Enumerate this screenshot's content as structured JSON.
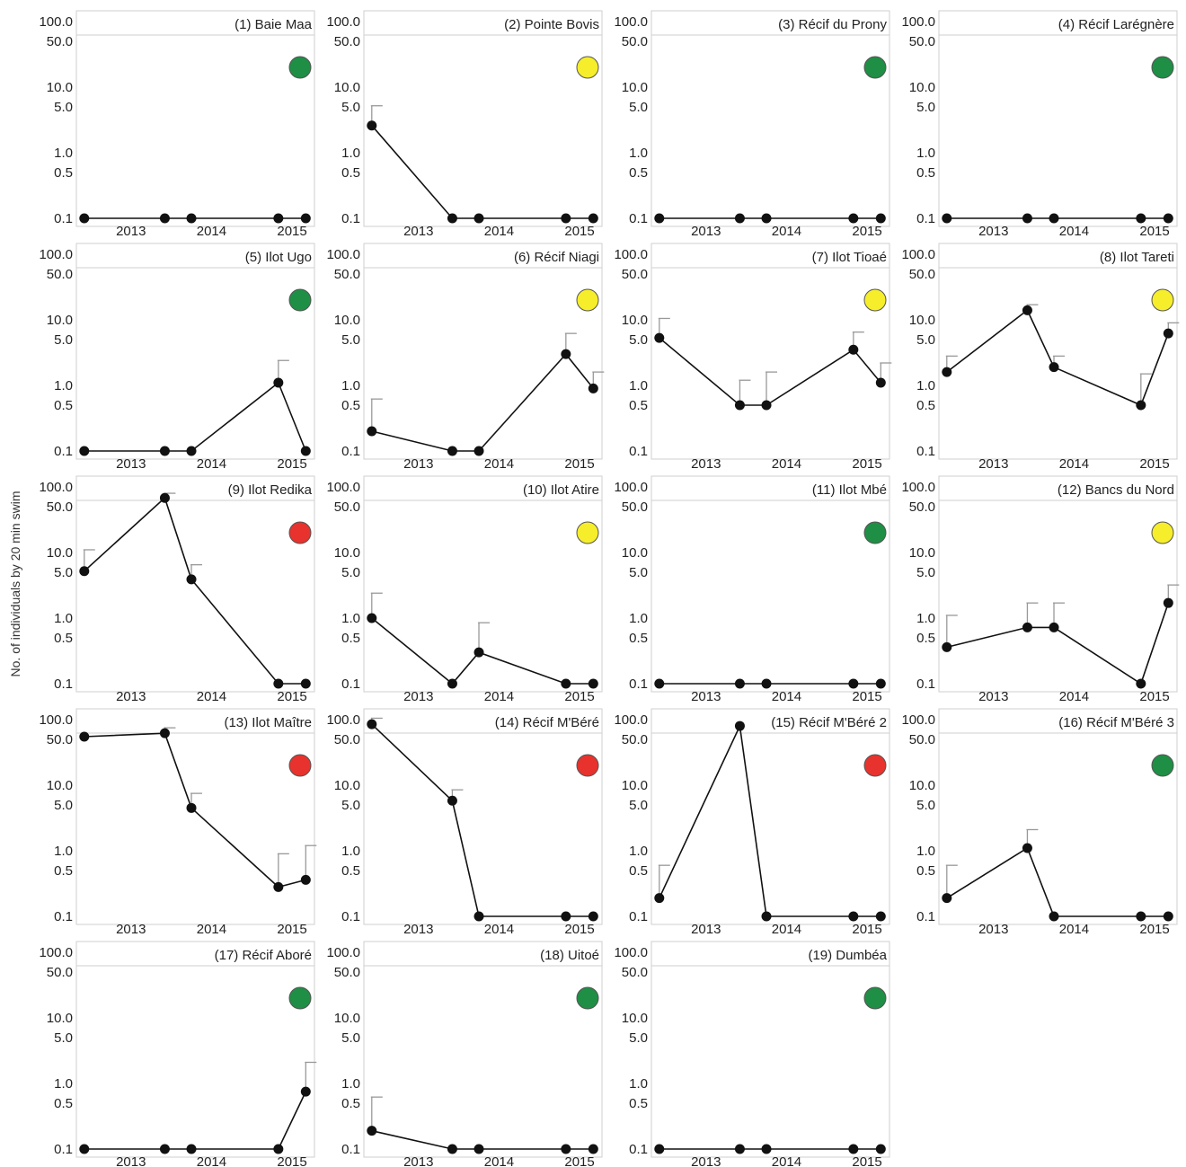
{
  "figure": {
    "ylabel": "No. of individuals by 20 min swim"
  },
  "status_colors": {
    "green": "#1e8f45",
    "yellow": "#f6ee2a",
    "red": "#e8322d"
  },
  "chart_data": {
    "type": "line",
    "yscale": "log",
    "ylim": [
      0.1,
      100
    ],
    "yticks": [
      "100.0",
      "50.0",
      "10.0",
      "5.0",
      "1.0",
      "0.5",
      "0.1"
    ],
    "ytick_values": [
      100,
      50,
      10,
      5,
      1,
      0.5,
      0.1
    ],
    "xticks": [
      "2013",
      "2014",
      "2015"
    ],
    "xtick_values": [
      2013,
      2014,
      2015
    ],
    "xlim": [
      2012.4,
      2015.2
    ],
    "x": [
      2012.42,
      2013.42,
      2013.75,
      2014.83,
      2015.17
    ],
    "panels": [
      {
        "title": "(1) Baie Maa",
        "status": "green",
        "values": [
          0.1,
          0.1,
          0.1,
          0.1,
          0.1
        ],
        "errors": [
          null,
          null,
          null,
          null,
          null
        ]
      },
      {
        "title": "(2) Pointe Bovis",
        "status": "yellow",
        "values": [
          2.6,
          0.1,
          0.1,
          0.1,
          0.1
        ],
        "errors": [
          5.2,
          null,
          null,
          null,
          null
        ]
      },
      {
        "title": "(3) Récif du Prony",
        "status": "green",
        "values": [
          0.1,
          0.1,
          0.1,
          0.1,
          0.1
        ],
        "errors": [
          null,
          null,
          null,
          null,
          null
        ]
      },
      {
        "title": "(4) Récif Larégnère",
        "status": "green",
        "values": [
          0.1,
          0.1,
          0.1,
          0.1,
          0.1
        ],
        "errors": [
          null,
          null,
          null,
          null,
          null
        ]
      },
      {
        "title": "(5) Ilot Ugo",
        "status": "green",
        "values": [
          0.1,
          0.1,
          0.1,
          1.1,
          0.1
        ],
        "errors": [
          null,
          null,
          null,
          2.4,
          null
        ]
      },
      {
        "title": "(6) Récif Niagi",
        "status": "yellow",
        "values": [
          0.2,
          0.1,
          0.1,
          3.0,
          0.9
        ],
        "errors": [
          0.62,
          null,
          null,
          6.2,
          1.6
        ]
      },
      {
        "title": "(7) Ilot Tioaé",
        "status": "yellow",
        "values": [
          5.3,
          0.5,
          0.5,
          3.5,
          1.1
        ],
        "errors": [
          10.5,
          1.2,
          1.6,
          6.5,
          2.2
        ]
      },
      {
        "title": "(8) Ilot Tareti",
        "status": "yellow",
        "values": [
          1.6,
          14.0,
          1.9,
          0.5,
          6.2
        ],
        "errors": [
          2.8,
          17.0,
          2.8,
          1.5,
          9.0
        ]
      },
      {
        "title": "(9) Ilot Redika",
        "status": "red",
        "values": [
          5.2,
          68,
          3.9,
          0.1,
          0.1
        ],
        "errors": [
          11.0,
          80,
          6.5,
          null,
          null
        ]
      },
      {
        "title": "(10) Ilot Atire",
        "status": "yellow",
        "values": [
          1.0,
          0.1,
          0.3,
          0.1,
          0.1
        ],
        "errors": [
          2.4,
          null,
          0.85,
          null,
          null
        ]
      },
      {
        "title": "(11) Ilot Mbé",
        "status": "green",
        "values": [
          0.1,
          0.1,
          0.1,
          0.1,
          0.1
        ],
        "errors": [
          null,
          null,
          null,
          null,
          null
        ]
      },
      {
        "title": "(12) Bancs du Nord",
        "status": "yellow",
        "values": [
          0.36,
          0.72,
          0.72,
          0.1,
          1.7
        ],
        "errors": [
          1.1,
          1.7,
          1.7,
          null,
          3.2
        ]
      },
      {
        "title": "(13) Ilot Maître",
        "status": "red",
        "values": [
          55,
          62,
          4.5,
          0.28,
          0.36
        ],
        "errors": [
          null,
          75,
          7.5,
          0.9,
          1.2
        ]
      },
      {
        "title": "(14) Récif M'Béré",
        "status": "red",
        "values": [
          85,
          5.8,
          0.1,
          0.1,
          0.1
        ],
        "errors": [
          105,
          8.5,
          null,
          null,
          null
        ]
      },
      {
        "title": "(15) Récif M'Béré 2",
        "status": "red",
        "values": [
          0.19,
          80,
          0.1,
          0.1,
          0.1
        ],
        "errors": [
          0.6,
          null,
          null,
          null,
          null
        ]
      },
      {
        "title": "(16) Récif M'Béré 3",
        "status": "green",
        "values": [
          0.19,
          1.1,
          0.1,
          0.1,
          0.1
        ],
        "errors": [
          0.6,
          2.1,
          null,
          null,
          null
        ]
      },
      {
        "title": "(17) Récif Aboré",
        "status": "green",
        "values": [
          0.1,
          0.1,
          0.1,
          0.1,
          0.75
        ],
        "errors": [
          null,
          null,
          null,
          null,
          2.1
        ]
      },
      {
        "title": "(18) Uitoé",
        "status": "green",
        "values": [
          0.19,
          0.1,
          0.1,
          0.1,
          0.1
        ],
        "errors": [
          0.62,
          null,
          null,
          null,
          null
        ]
      },
      {
        "title": "(19) Dumbéa",
        "status": "green",
        "values": [
          0.1,
          0.1,
          0.1,
          0.1,
          0.1
        ],
        "errors": [
          null,
          null,
          null,
          null,
          null
        ]
      }
    ]
  }
}
